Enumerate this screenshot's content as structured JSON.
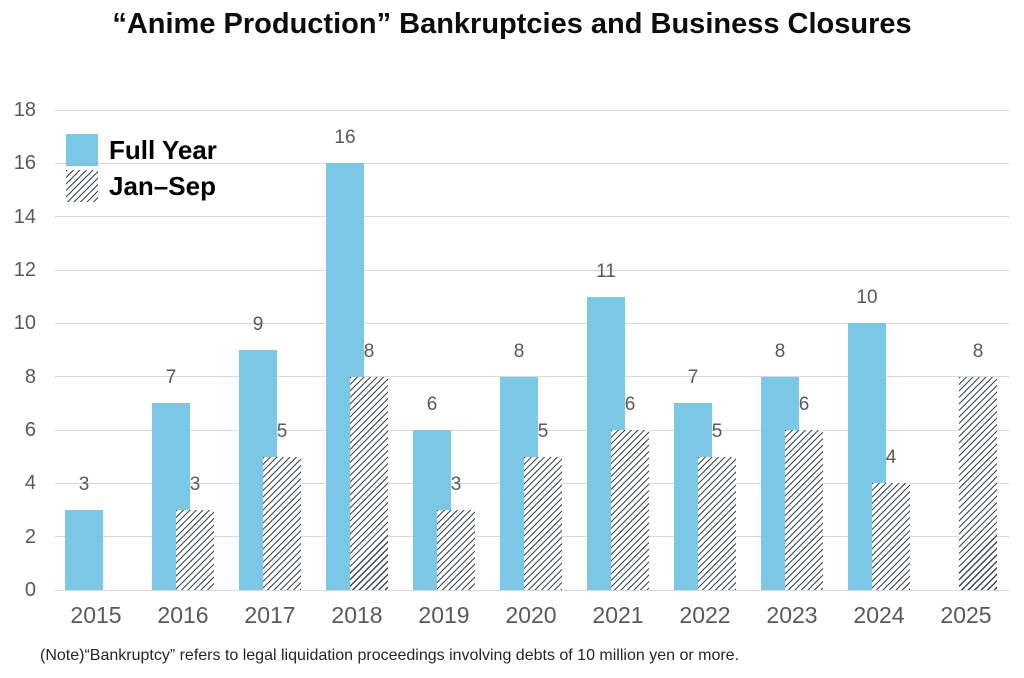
{
  "title": "“Anime Production” Bankruptcies and Business Closures",
  "legend": {
    "full_year": "Full Year",
    "jan_sep": "Jan–Sep"
  },
  "note": "(Note)“Bankruptcy” refers to legal liquidation proceedings involving debts of 10 million yen or more.",
  "colors": {
    "bar_blue": "#7cc6e6",
    "hatch_line": "#40494f",
    "gridline": "#d9d9d9",
    "axis_label": "#595959"
  },
  "chart_data": {
    "type": "bar",
    "title": "“Anime Production” Bankruptcies and Business Closures",
    "categories": [
      "2015",
      "2016",
      "2017",
      "2018",
      "2019",
      "2020",
      "2021",
      "2022",
      "2023",
      "2024",
      "2025"
    ],
    "series": [
      {
        "name": "Full Year",
        "pattern": "solid",
        "values": [
          3,
          7,
          9,
          16,
          6,
          8,
          11,
          7,
          8,
          10,
          null
        ]
      },
      {
        "name": "Jan–Sep",
        "pattern": "hatch",
        "values": [
          null,
          3,
          5,
          8,
          3,
          5,
          6,
          5,
          6,
          4,
          8
        ]
      }
    ],
    "xlabel": "",
    "ylabel": "",
    "ylim": [
      0,
      18
    ],
    "yticks": [
      0,
      2,
      4,
      6,
      8,
      10,
      12,
      14,
      16,
      18
    ],
    "grid": true,
    "legend_position": "top-left",
    "value_labels": true
  }
}
